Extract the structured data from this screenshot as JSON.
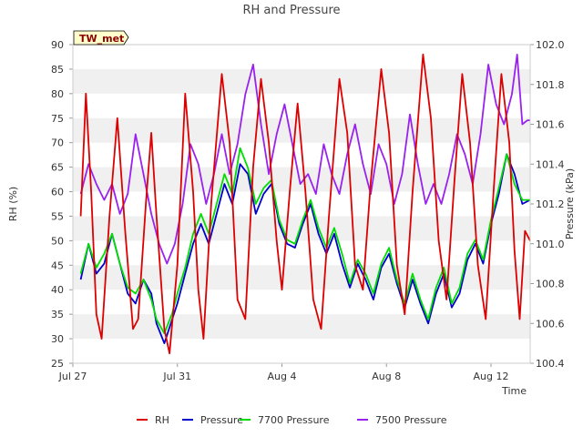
{
  "chart_data": {
    "type": "line",
    "title": "RH and Pressure",
    "badge": "TW_met",
    "xlabel": "Time",
    "ylabel_left": "RH (%)",
    "ylabel_right": "Pressure (kPa)",
    "x_range_days": [
      0,
      17.5
    ],
    "x_ticks": [
      {
        "day": 0,
        "label": "Jul 27"
      },
      {
        "day": 4,
        "label": "Jul 31"
      },
      {
        "day": 8,
        "label": "Aug 4"
      },
      {
        "day": 12,
        "label": "Aug 8"
      },
      {
        "day": 16,
        "label": "Aug 12"
      }
    ],
    "y_left": {
      "min": 25,
      "max": 90,
      "ticks": [
        25,
        30,
        35,
        40,
        45,
        50,
        55,
        60,
        65,
        70,
        75,
        80,
        85,
        90
      ]
    },
    "y_right": {
      "min": 100.4,
      "max": 102.0,
      "ticks": [
        100.4,
        100.6,
        100.8,
        101.0,
        101.2,
        101.4,
        101.6,
        101.8,
        102.0
      ]
    },
    "grid": "horizontal-bands",
    "legend_position": "bottom",
    "series": [
      {
        "name": "RH",
        "axis": "left",
        "color": "#dd0000",
        "points": [
          [
            0.3,
            55
          ],
          [
            0.5,
            80
          ],
          [
            0.7,
            60
          ],
          [
            0.9,
            35
          ],
          [
            1.1,
            30
          ],
          [
            1.4,
            55
          ],
          [
            1.7,
            75
          ],
          [
            2.0,
            52
          ],
          [
            2.3,
            32
          ],
          [
            2.5,
            34
          ],
          [
            2.8,
            58
          ],
          [
            3.0,
            72
          ],
          [
            3.2,
            55
          ],
          [
            3.5,
            32
          ],
          [
            3.7,
            27
          ],
          [
            4.0,
            45
          ],
          [
            4.3,
            80
          ],
          [
            4.6,
            60
          ],
          [
            4.8,
            40
          ],
          [
            5.0,
            30
          ],
          [
            5.3,
            58
          ],
          [
            5.7,
            84
          ],
          [
            6.0,
            70
          ],
          [
            6.3,
            38
          ],
          [
            6.6,
            34
          ],
          [
            6.9,
            65
          ],
          [
            7.2,
            83
          ],
          [
            7.5,
            70
          ],
          [
            7.8,
            50
          ],
          [
            8.0,
            40
          ],
          [
            8.3,
            60
          ],
          [
            8.6,
            78
          ],
          [
            8.9,
            60
          ],
          [
            9.2,
            38
          ],
          [
            9.5,
            32
          ],
          [
            9.8,
            55
          ],
          [
            10.2,
            83
          ],
          [
            10.5,
            72
          ],
          [
            10.8,
            45
          ],
          [
            11.1,
            40
          ],
          [
            11.4,
            62
          ],
          [
            11.8,
            85
          ],
          [
            12.1,
            72
          ],
          [
            12.4,
            45
          ],
          [
            12.7,
            35
          ],
          [
            13.0,
            60
          ],
          [
            13.4,
            88
          ],
          [
            13.7,
            75
          ],
          [
            14.0,
            50
          ],
          [
            14.3,
            38
          ],
          [
            14.6,
            62
          ],
          [
            14.9,
            84
          ],
          [
            15.2,
            70
          ],
          [
            15.5,
            45
          ],
          [
            15.8,
            34
          ],
          [
            16.1,
            60
          ],
          [
            16.4,
            84
          ],
          [
            16.7,
            70
          ],
          [
            16.9,
            48
          ],
          [
            17.1,
            34
          ],
          [
            17.3,
            52
          ],
          [
            17.5,
            50
          ]
        ]
      },
      {
        "name": "Pressure",
        "axis": "right",
        "color": "#0000cc",
        "points": [
          [
            0.3,
            100.82
          ],
          [
            0.6,
            101.0
          ],
          [
            0.9,
            100.85
          ],
          [
            1.2,
            100.9
          ],
          [
            1.5,
            101.05
          ],
          [
            1.8,
            100.9
          ],
          [
            2.1,
            100.75
          ],
          [
            2.4,
            100.7
          ],
          [
            2.7,
            100.82
          ],
          [
            3.0,
            100.75
          ],
          [
            3.2,
            100.6
          ],
          [
            3.5,
            100.5
          ],
          [
            3.8,
            100.62
          ],
          [
            4.0,
            100.7
          ],
          [
            4.3,
            100.85
          ],
          [
            4.6,
            101.0
          ],
          [
            4.9,
            101.1
          ],
          [
            5.2,
            101.0
          ],
          [
            5.5,
            101.15
          ],
          [
            5.8,
            101.3
          ],
          [
            6.1,
            101.2
          ],
          [
            6.4,
            101.4
          ],
          [
            6.7,
            101.35
          ],
          [
            7.0,
            101.15
          ],
          [
            7.3,
            101.25
          ],
          [
            7.6,
            101.3
          ],
          [
            7.9,
            101.1
          ],
          [
            8.2,
            101.0
          ],
          [
            8.5,
            100.98
          ],
          [
            8.8,
            101.1
          ],
          [
            9.1,
            101.2
          ],
          [
            9.4,
            101.05
          ],
          [
            9.7,
            100.95
          ],
          [
            10.0,
            101.05
          ],
          [
            10.3,
            100.9
          ],
          [
            10.6,
            100.78
          ],
          [
            10.9,
            100.9
          ],
          [
            11.2,
            100.82
          ],
          [
            11.5,
            100.72
          ],
          [
            11.8,
            100.88
          ],
          [
            12.1,
            100.95
          ],
          [
            12.4,
            100.8
          ],
          [
            12.7,
            100.68
          ],
          [
            13.0,
            100.82
          ],
          [
            13.3,
            100.7
          ],
          [
            13.6,
            100.6
          ],
          [
            13.9,
            100.75
          ],
          [
            14.2,
            100.85
          ],
          [
            14.5,
            100.68
          ],
          [
            14.8,
            100.75
          ],
          [
            15.1,
            100.92
          ],
          [
            15.4,
            101.0
          ],
          [
            15.7,
            100.9
          ],
          [
            16.0,
            101.1
          ],
          [
            16.3,
            101.25
          ],
          [
            16.6,
            101.45
          ],
          [
            16.9,
            101.35
          ],
          [
            17.2,
            101.2
          ],
          [
            17.5,
            101.22
          ]
        ]
      },
      {
        "name": "7700 Pressure",
        "axis": "right",
        "color": "#00dd00",
        "points": [
          [
            0.3,
            100.85
          ],
          [
            0.6,
            101.0
          ],
          [
            0.9,
            100.88
          ],
          [
            1.2,
            100.95
          ],
          [
            1.5,
            101.05
          ],
          [
            1.8,
            100.9
          ],
          [
            2.1,
            100.78
          ],
          [
            2.4,
            100.75
          ],
          [
            2.7,
            100.82
          ],
          [
            3.0,
            100.72
          ],
          [
            3.2,
            100.62
          ],
          [
            3.5,
            100.55
          ],
          [
            3.8,
            100.65
          ],
          [
            4.0,
            100.75
          ],
          [
            4.3,
            100.88
          ],
          [
            4.6,
            101.05
          ],
          [
            4.9,
            101.15
          ],
          [
            5.2,
            101.05
          ],
          [
            5.5,
            101.2
          ],
          [
            5.8,
            101.35
          ],
          [
            6.1,
            101.25
          ],
          [
            6.4,
            101.48
          ],
          [
            6.7,
            101.38
          ],
          [
            7.0,
            101.2
          ],
          [
            7.3,
            101.28
          ],
          [
            7.6,
            101.32
          ],
          [
            7.9,
            101.12
          ],
          [
            8.2,
            101.02
          ],
          [
            8.5,
            101.0
          ],
          [
            8.8,
            101.12
          ],
          [
            9.1,
            101.22
          ],
          [
            9.4,
            101.08
          ],
          [
            9.7,
            100.98
          ],
          [
            10.0,
            101.08
          ],
          [
            10.3,
            100.95
          ],
          [
            10.6,
            100.8
          ],
          [
            10.9,
            100.92
          ],
          [
            11.2,
            100.85
          ],
          [
            11.5,
            100.75
          ],
          [
            11.8,
            100.9
          ],
          [
            12.1,
            100.98
          ],
          [
            12.4,
            100.82
          ],
          [
            12.7,
            100.7
          ],
          [
            13.0,
            100.85
          ],
          [
            13.3,
            100.72
          ],
          [
            13.6,
            100.62
          ],
          [
            13.9,
            100.78
          ],
          [
            14.2,
            100.88
          ],
          [
            14.5,
            100.7
          ],
          [
            14.8,
            100.78
          ],
          [
            15.1,
            100.95
          ],
          [
            15.4,
            101.02
          ],
          [
            15.7,
            100.92
          ],
          [
            16.0,
            101.12
          ],
          [
            16.3,
            101.28
          ],
          [
            16.6,
            101.45
          ],
          [
            16.9,
            101.3
          ],
          [
            17.2,
            101.22
          ],
          [
            17.5,
            101.22
          ]
        ]
      },
      {
        "name": "7500 Pressure",
        "axis": "right",
        "color": "#9922ee",
        "points": [
          [
            0.3,
            101.25
          ],
          [
            0.6,
            101.4
          ],
          [
            0.9,
            101.3
          ],
          [
            1.2,
            101.22
          ],
          [
            1.5,
            101.3
          ],
          [
            1.8,
            101.15
          ],
          [
            2.1,
            101.25
          ],
          [
            2.4,
            101.55
          ],
          [
            2.7,
            101.35
          ],
          [
            3.0,
            101.15
          ],
          [
            3.3,
            101.0
          ],
          [
            3.6,
            100.9
          ],
          [
            3.9,
            101.0
          ],
          [
            4.2,
            101.2
          ],
          [
            4.5,
            101.5
          ],
          [
            4.8,
            101.4
          ],
          [
            5.1,
            101.2
          ],
          [
            5.4,
            101.35
          ],
          [
            5.7,
            101.55
          ],
          [
            6.0,
            101.35
          ],
          [
            6.3,
            101.5
          ],
          [
            6.6,
            101.75
          ],
          [
            6.9,
            101.9
          ],
          [
            7.2,
            101.6
          ],
          [
            7.5,
            101.35
          ],
          [
            7.8,
            101.55
          ],
          [
            8.1,
            101.7
          ],
          [
            8.4,
            101.5
          ],
          [
            8.7,
            101.3
          ],
          [
            9.0,
            101.35
          ],
          [
            9.3,
            101.25
          ],
          [
            9.6,
            101.5
          ],
          [
            9.9,
            101.35
          ],
          [
            10.2,
            101.25
          ],
          [
            10.5,
            101.45
          ],
          [
            10.8,
            101.6
          ],
          [
            11.1,
            101.4
          ],
          [
            11.4,
            101.25
          ],
          [
            11.7,
            101.5
          ],
          [
            12.0,
            101.4
          ],
          [
            12.3,
            101.2
          ],
          [
            12.6,
            101.35
          ],
          [
            12.9,
            101.65
          ],
          [
            13.2,
            101.4
          ],
          [
            13.5,
            101.2
          ],
          [
            13.8,
            101.3
          ],
          [
            14.1,
            101.2
          ],
          [
            14.4,
            101.35
          ],
          [
            14.7,
            101.55
          ],
          [
            15.0,
            101.45
          ],
          [
            15.3,
            101.3
          ],
          [
            15.6,
            101.55
          ],
          [
            15.9,
            101.9
          ],
          [
            16.2,
            101.7
          ],
          [
            16.5,
            101.6
          ],
          [
            16.8,
            101.75
          ],
          [
            17.0,
            101.95
          ],
          [
            17.2,
            101.6
          ],
          [
            17.4,
            101.62
          ],
          [
            17.5,
            101.62
          ]
        ]
      }
    ]
  }
}
